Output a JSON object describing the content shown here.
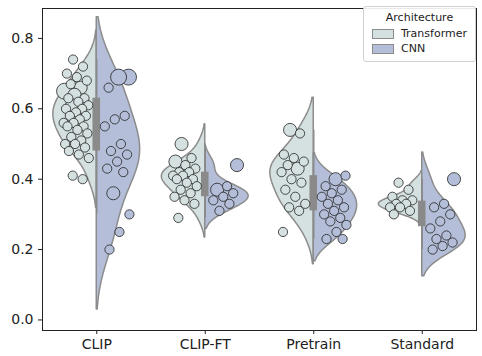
{
  "chart_data": {
    "type": "violin",
    "categories": [
      "CLIP",
      "CLIP-FT",
      "Pretrain",
      "Standard"
    ],
    "legend_title": "Architecture",
    "legend": "upper right",
    "ylim": [
      -0.03,
      0.885
    ],
    "yticks": [
      {
        "value": 0,
        "label": "0.0"
      },
      0.2,
      0.4,
      0.6,
      0.8
    ],
    "series": [
      {
        "name": "Transformer",
        "color": "#d5e1e1",
        "values": [
          [
            0.74,
            0.72,
            0.7,
            0.69,
            0.68,
            0.67,
            0.66,
            0.65,
            0.64,
            0.63,
            0.63,
            0.62,
            0.61,
            0.61,
            0.6,
            0.6,
            0.59,
            0.58,
            0.58,
            0.57,
            0.56,
            0.56,
            0.55,
            0.55,
            0.54,
            0.53,
            0.52,
            0.51,
            0.5,
            0.5,
            0.49,
            0.48,
            0.47,
            0.46,
            0.41,
            0.4
          ],
          [
            0.5,
            0.46,
            0.45,
            0.44,
            0.43,
            0.42,
            0.42,
            0.41,
            0.41,
            0.4,
            0.4,
            0.39,
            0.38,
            0.37,
            0.36,
            0.35,
            0.34,
            0.33,
            0.29
          ],
          [
            0.54,
            0.53,
            0.47,
            0.46,
            0.45,
            0.44,
            0.43,
            0.42,
            0.4,
            0.39,
            0.37,
            0.35,
            0.33,
            0.32,
            0.31,
            0.25
          ],
          [
            0.39,
            0.37,
            0.35,
            0.34,
            0.34,
            0.33,
            0.33,
            0.32,
            0.32,
            0.31,
            0.3
          ]
        ],
        "sizes": [
          [
            1,
            1,
            1,
            1,
            1,
            1,
            2,
            3,
            2,
            1,
            1,
            1,
            1,
            2,
            1,
            1,
            1,
            1,
            1,
            1,
            1,
            1,
            1,
            1,
            1,
            1,
            1,
            1,
            1,
            1,
            1,
            1,
            1,
            1,
            1,
            1
          ],
          [
            2,
            1,
            2,
            1,
            1,
            1,
            1,
            1,
            1,
            1,
            1,
            1,
            1,
            1,
            1,
            1,
            1,
            1,
            1
          ],
          [
            2,
            1,
            1,
            1,
            1,
            1,
            2,
            1,
            1,
            1,
            1,
            1,
            1,
            1,
            1,
            1
          ],
          [
            1,
            1,
            1,
            1,
            1,
            1,
            1,
            1,
            1,
            1,
            1
          ]
        ]
      },
      {
        "name": "CNN",
        "color": "#b4bed8",
        "values": [
          [
            0.69,
            0.69,
            0.66,
            0.58,
            0.57,
            0.55,
            0.5,
            0.48,
            0.47,
            0.45,
            0.43,
            0.42,
            0.36,
            0.3,
            0.25,
            0.2
          ],
          [
            0.44,
            0.38,
            0.37,
            0.36,
            0.35,
            0.34,
            0.33,
            0.31
          ],
          [
            0.41,
            0.4,
            0.38,
            0.37,
            0.36,
            0.35,
            0.34,
            0.33,
            0.32,
            0.31,
            0.3,
            0.29,
            0.28,
            0.27,
            0.25,
            0.23,
            0.23
          ],
          [
            0.4,
            0.33,
            0.32,
            0.3,
            0.28,
            0.26,
            0.24,
            0.23,
            0.22,
            0.21,
            0.2
          ]
        ],
        "sizes": [
          [
            3,
            3,
            1,
            1,
            1,
            1,
            1,
            1,
            1,
            1,
            1,
            1,
            2,
            1,
            1,
            1
          ],
          [
            2,
            1,
            2,
            1,
            1,
            1,
            1,
            1
          ],
          [
            1,
            2,
            1,
            1,
            1,
            1,
            1,
            1,
            1,
            1,
            1,
            1,
            1,
            1,
            1,
            1,
            1
          ],
          [
            2,
            1,
            1,
            1,
            1,
            1,
            1,
            1,
            1,
            1,
            1
          ]
        ]
      }
    ]
  }
}
